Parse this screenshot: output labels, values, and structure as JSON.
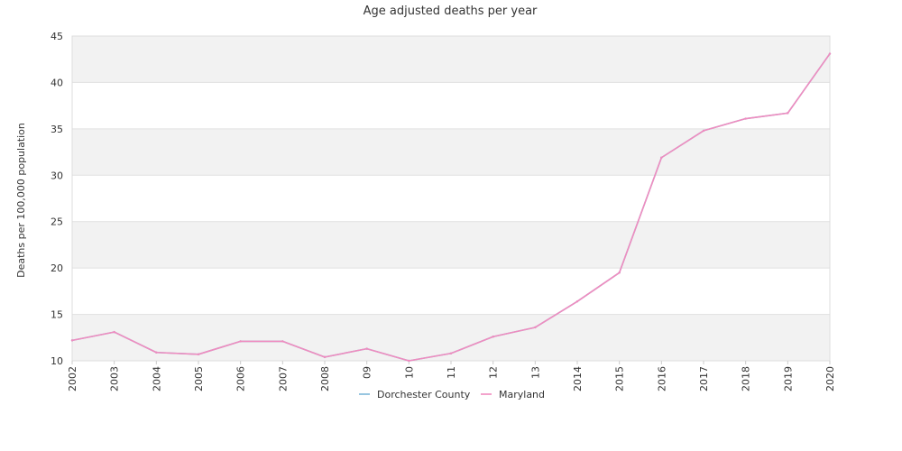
{
  "chart_data": {
    "type": "line",
    "title": "Age adjusted deaths per year",
    "xlabel": "",
    "ylabel": "Deaths per 100,000 population",
    "categories": [
      "2002",
      "2003",
      "2004",
      "2005",
      "2006",
      "2007",
      "2008",
      "09",
      "10",
      "11",
      "12",
      "13",
      "2014",
      "2015",
      "2016",
      "2017",
      "2018",
      "2019",
      "2020"
    ],
    "ylim": [
      10,
      45
    ],
    "yticks": [
      10,
      15,
      20,
      25,
      30,
      35,
      40,
      45
    ],
    "grid": "horizontal alternating bands",
    "legend_position": "bottom-center",
    "series": [
      {
        "name": "Dorchester County",
        "color": "#7fb8d8",
        "values": [
          12.2,
          13.1,
          10.9,
          10.7,
          12.1,
          12.1,
          10.4,
          11.3,
          10.0,
          10.8,
          12.6,
          13.6,
          16.4,
          19.5,
          31.9,
          34.8,
          36.1,
          36.7,
          43.1
        ]
      },
      {
        "name": "Maryland",
        "color": "#f08cbf",
        "values": [
          12.2,
          13.1,
          10.9,
          10.7,
          12.1,
          12.1,
          10.4,
          11.3,
          10.0,
          10.8,
          12.6,
          13.6,
          16.4,
          19.5,
          31.9,
          34.8,
          36.1,
          36.7,
          43.1
        ]
      }
    ]
  }
}
